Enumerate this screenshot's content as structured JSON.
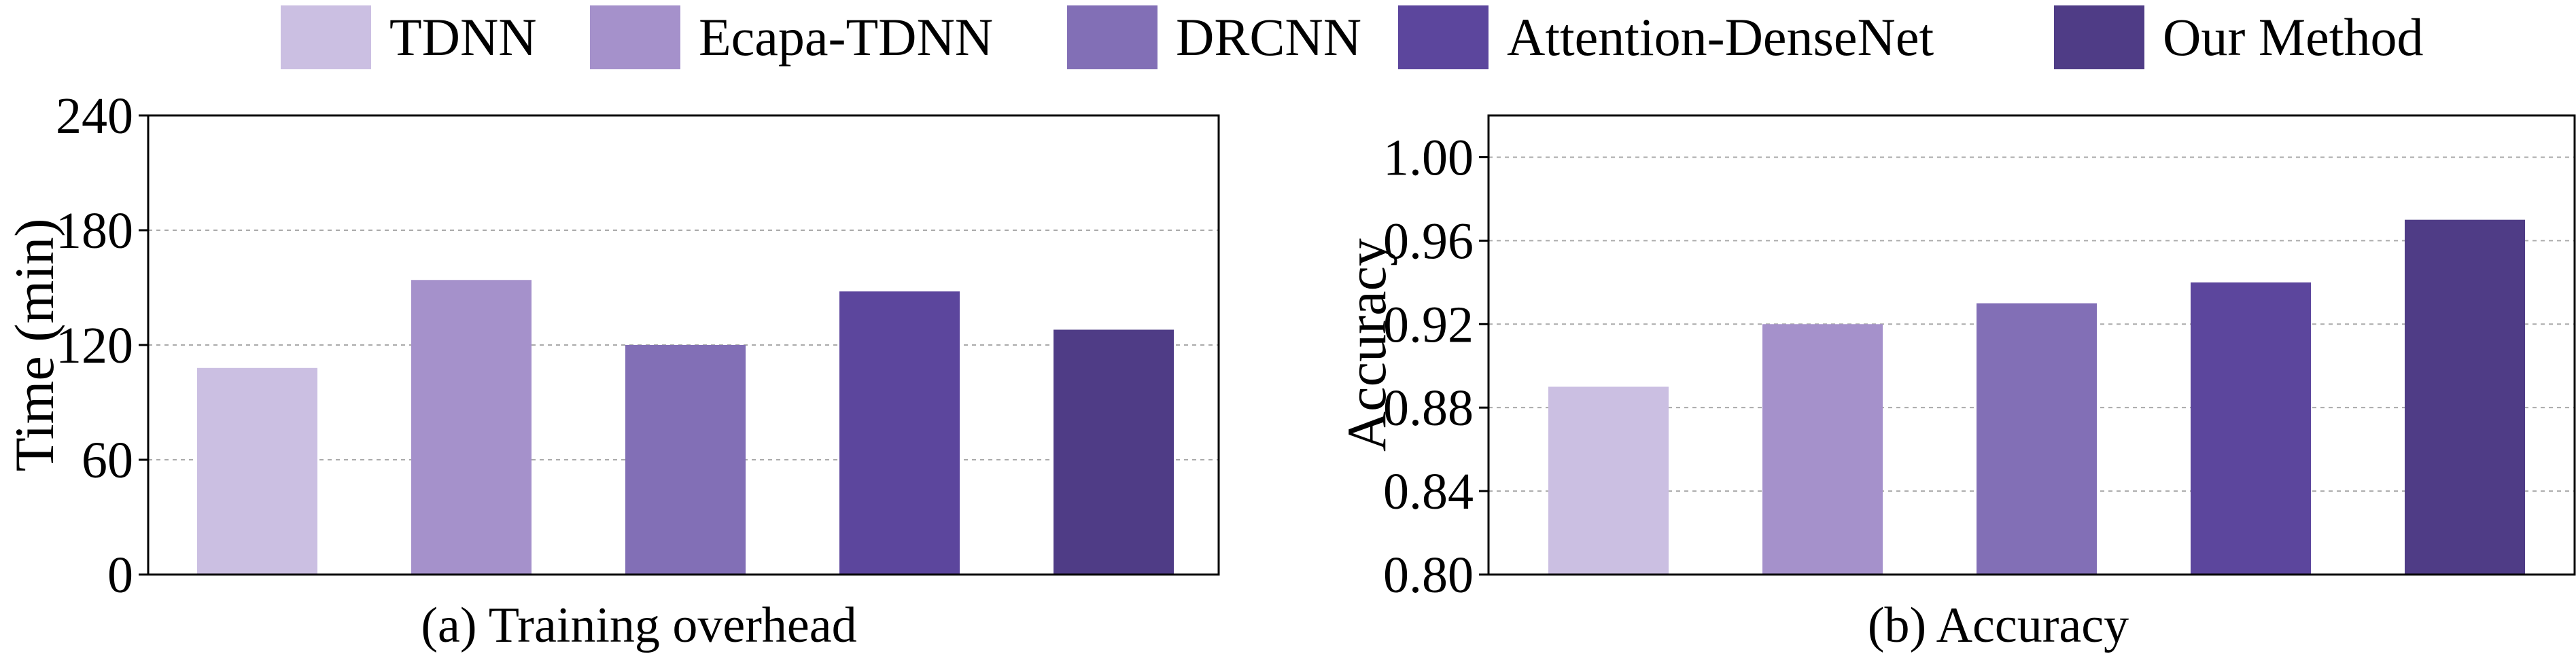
{
  "legend": {
    "items": [
      {
        "label": "TDNN",
        "color": "#cbbfe2"
      },
      {
        "label": "Ecapa-TDNN",
        "color": "#a591cb"
      },
      {
        "label": "DRCNN",
        "color": "#826fb6"
      },
      {
        "label": "Attention-DenseNet",
        "color": "#5c469d"
      },
      {
        "label": "Our Method",
        "color": "#4f3c86"
      }
    ]
  },
  "chart_data": [
    {
      "type": "bar",
      "caption": "(a) Training overhead",
      "ylabel": "Time (min)",
      "categories": [
        "TDNN",
        "Ecapa-TDNN",
        "DRCNN",
        "Attention-DenseNet",
        "Our Method"
      ],
      "values": [
        108,
        154,
        120,
        148,
        128
      ],
      "ylim": [
        0,
        240
      ],
      "yticks": [
        "0",
        "60",
        "120",
        "180",
        "240"
      ],
      "grid": true
    },
    {
      "type": "bar",
      "caption": "(b) Accuracy",
      "ylabel": "Accuracy",
      "categories": [
        "TDNN",
        "Ecapa-TDNN",
        "DRCNN",
        "Attention-DenseNet",
        "Our Method"
      ],
      "values": [
        0.89,
        0.92,
        0.93,
        0.94,
        0.97
      ],
      "ylim": [
        0.8,
        1.02
      ],
      "yticks": [
        "0.80",
        "0.84",
        "0.88",
        "0.92",
        "0.96",
        "1.00"
      ],
      "grid": true
    }
  ]
}
